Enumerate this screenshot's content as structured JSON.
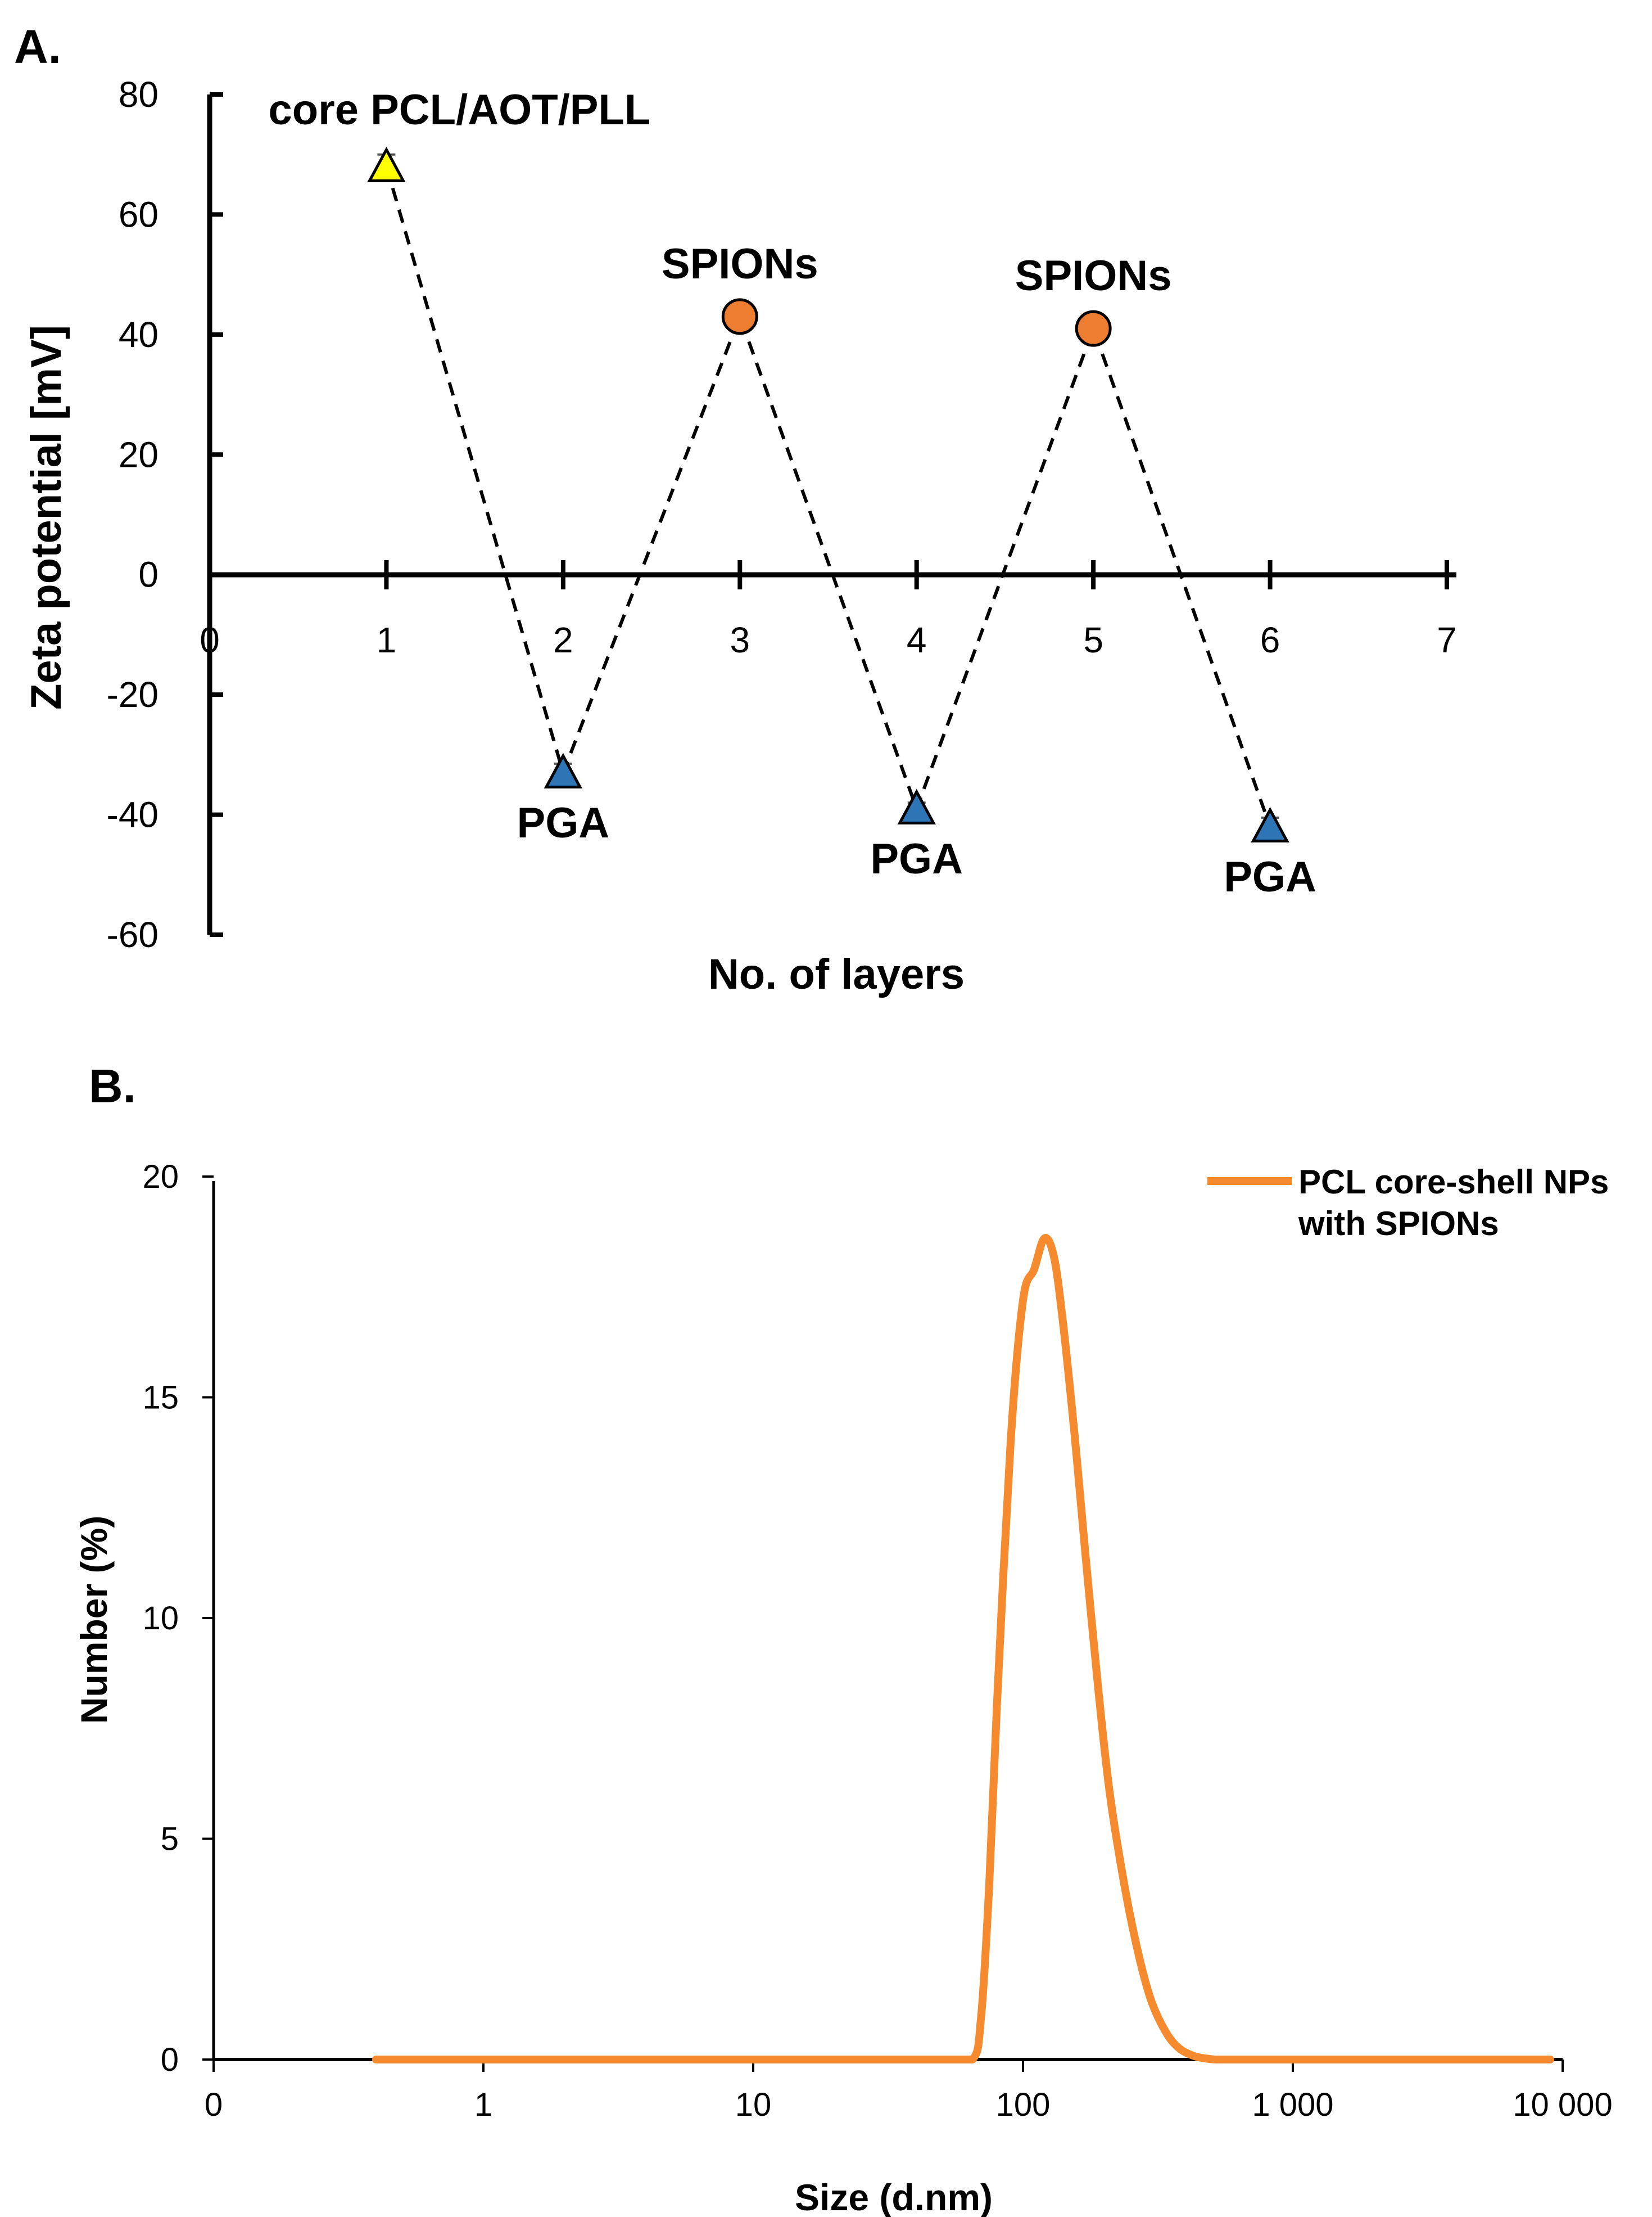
{
  "chart_data": [
    {
      "panel_label": "A.",
      "type": "line",
      "xlabel": "No. of layers",
      "ylabel": "Zeta potential [mV]",
      "xlim": [
        0,
        7
      ],
      "ylim": [
        -60,
        80
      ],
      "x_ticks": [
        "0",
        "1",
        "2",
        "3",
        "4",
        "5",
        "6",
        "7"
      ],
      "y_ticks": [
        "80",
        "60",
        "40",
        "20",
        "0",
        "-20",
        "-40",
        "-60"
      ],
      "line_style": "dashed",
      "points": [
        {
          "x": 1,
          "y": 68,
          "error": 2,
          "marker": "triangle",
          "color": "#ffff00",
          "label": "core PCL/AOT/PLL",
          "label_pos": "above-right"
        },
        {
          "x": 2,
          "y": -33,
          "error": 1.5,
          "marker": "triangle",
          "color": "#2e75b6",
          "label": "PGA",
          "label_pos": "below"
        },
        {
          "x": 3,
          "y": 43,
          "error": 1,
          "marker": "circle",
          "color": "#ed7d31",
          "label": "SPIONs",
          "label_pos": "above"
        },
        {
          "x": 4,
          "y": -39,
          "error": 1,
          "marker": "triangle",
          "color": "#2e75b6",
          "label": "PGA",
          "label_pos": "below"
        },
        {
          "x": 5,
          "y": 41,
          "error": 1,
          "marker": "circle",
          "color": "#ed7d31",
          "label": "SPIONs",
          "label_pos": "above"
        },
        {
          "x": 6,
          "y": -42,
          "error": 1.5,
          "marker": "triangle",
          "color": "#2e75b6",
          "label": "PGA",
          "label_pos": "below"
        }
      ]
    },
    {
      "panel_label": "B.",
      "type": "line",
      "xlabel": "Size (d.nm)",
      "ylabel": "Number (%)",
      "x_scale": "log",
      "x_ticks": [
        "0",
        "1",
        "10",
        "100",
        "1 000",
        "10 000"
      ],
      "x_tick_values": [
        0.1,
        1,
        10,
        100,
        1000,
        10000
      ],
      "y_ticks": [
        "20",
        "15",
        "10",
        "5",
        "0"
      ],
      "ylim": [
        0,
        20
      ],
      "series": [
        {
          "name": "PCL core-shell NPs\nwith SPIONs",
          "legend_lines": [
            "PCL core-shell NPs",
            "with SPIONs"
          ],
          "color": "#f58b2e",
          "x": [
            0.4,
            1,
            10,
            50,
            65,
            70,
            75,
            80,
            90,
            100,
            110,
            120,
            130,
            140,
            155,
            170,
            190,
            210,
            240,
            270,
            300,
            340,
            380,
            430,
            480,
            520,
            600,
            1000,
            9000
          ],
          "y": [
            0,
            0,
            0,
            0,
            0,
            1,
            4,
            8,
            14,
            17.2,
            17.9,
            18.6,
            18.2,
            16.8,
            14.2,
            11.5,
            8.4,
            6.0,
            3.8,
            2.3,
            1.3,
            0.6,
            0.25,
            0.08,
            0.02,
            0,
            0,
            0,
            0
          ]
        }
      ]
    }
  ]
}
